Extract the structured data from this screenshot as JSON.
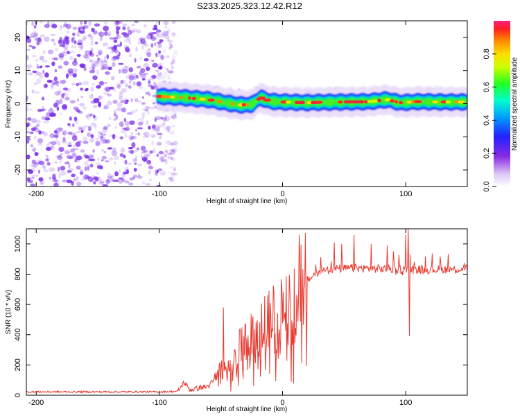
{
  "title": "S233.2025.323.12.42.R12",
  "colors": {
    "snr_line": "#e8392f",
    "speckle": "#7b2fe8",
    "band_core": "#e8283c",
    "frame": "#000000"
  },
  "chart_data": [
    {
      "type": "heatmap",
      "name": "spectrogram",
      "xlabel": "Height of straight line (km)",
      "ylabel": "Frequency (Hz)",
      "xlim": [
        -208,
        150
      ],
      "ylim": [
        -25,
        25
      ],
      "xticks": [
        -200,
        -100,
        0,
        100
      ],
      "yticks": [
        -20,
        -10,
        0,
        10,
        20
      ],
      "noise_region_x": [
        -208,
        -92
      ],
      "band_start_x": -102,
      "band_center_hz": [
        [
          -100,
          2.2
        ],
        [
          -80,
          1.8
        ],
        [
          -60,
          1.2
        ],
        [
          -45,
          0.2
        ],
        [
          -35,
          -0.4
        ],
        [
          -25,
          -0.3
        ],
        [
          -18,
          1.8
        ],
        [
          -10,
          0.7
        ],
        [
          0,
          0.5
        ],
        [
          10,
          0.4
        ],
        [
          20,
          0.3
        ],
        [
          30,
          0.4
        ],
        [
          50,
          0.5
        ],
        [
          70,
          0.6
        ],
        [
          85,
          1.2
        ],
        [
          95,
          0.3
        ],
        [
          110,
          0.6
        ],
        [
          130,
          0.5
        ],
        [
          150,
          0.5
        ]
      ],
      "colorbar": {
        "label": "Normalized spectral amplitude",
        "range": [
          0,
          1
        ],
        "ticks": [
          0.0,
          0.2,
          0.4,
          0.6,
          0.8
        ],
        "tick_labels": [
          "0.0",
          "0.2",
          "0.4",
          "0.6",
          "0.8"
        ]
      }
    },
    {
      "type": "line",
      "name": "snr",
      "xlabel": "Height of straight line (km)",
      "ylabel": "SNR (10 * v/v)",
      "xlim": [
        -208,
        150
      ],
      "ylim": [
        0,
        1100
      ],
      "xticks": [
        -200,
        -100,
        0,
        100
      ],
      "yticks": [
        0,
        200,
        400,
        600,
        800,
        1000
      ],
      "trend": [
        [
          -208,
          22
        ],
        [
          -100,
          22
        ],
        [
          -85,
          25
        ],
        [
          -80,
          85
        ],
        [
          -75,
          35
        ],
        [
          -60,
          60
        ],
        [
          -50,
          150
        ],
        [
          -40,
          240
        ],
        [
          -30,
          320
        ],
        [
          -20,
          390
        ],
        [
          -10,
          460
        ],
        [
          0,
          560
        ],
        [
          10,
          680
        ],
        [
          20,
          760
        ],
        [
          30,
          820
        ],
        [
          40,
          835
        ],
        [
          60,
          840
        ],
        [
          80,
          835
        ],
        [
          100,
          830
        ],
        [
          120,
          830
        ],
        [
          150,
          835
        ]
      ],
      "spikes": [
        [
          -48,
          580
        ],
        [
          -30,
          470
        ],
        [
          -24,
          520
        ],
        [
          -10,
          610
        ],
        [
          42,
          1010
        ],
        [
          48,
          1000
        ],
        [
          58,
          1060
        ],
        [
          72,
          1000
        ],
        [
          85,
          990
        ],
        [
          90,
          950
        ],
        [
          100,
          1060
        ],
        [
          102,
          1100
        ],
        [
          103,
          390
        ],
        [
          107,
          880
        ]
      ]
    }
  ]
}
